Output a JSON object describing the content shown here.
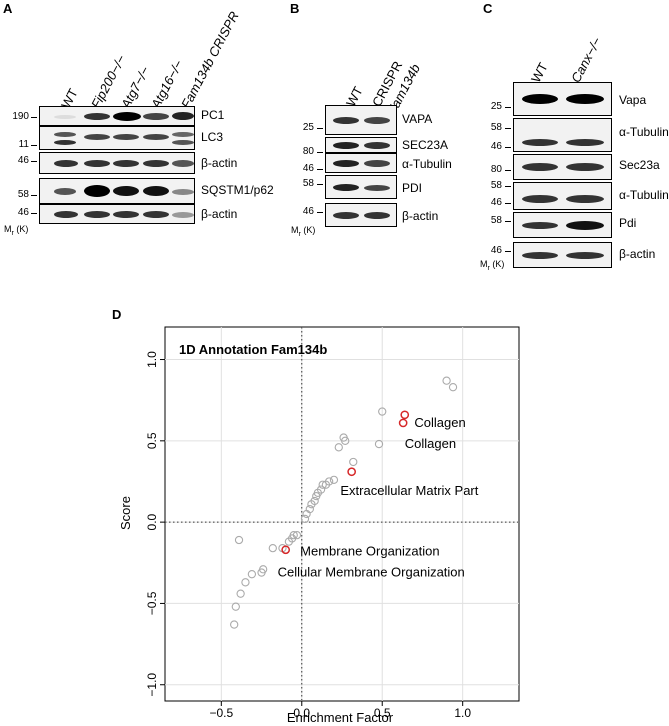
{
  "panels": {
    "A": {
      "letter": "A",
      "lanes": [
        "WT",
        "Fip200−/−",
        "Atg7−/−",
        "Atg16−/−",
        "Fam134b CRISPR"
      ],
      "blots": [
        "PC1",
        "LC3",
        "β-actin",
        "SQSTM1/p62",
        "β-actin"
      ],
      "markers": [
        "190",
        "11",
        "46",
        "58",
        "46"
      ],
      "mr_label": "M",
      "mr_sub": "r",
      "mr_unit": " (K)"
    },
    "B": {
      "letter": "B",
      "lanes": [
        "WT",
        "CRISPR",
        "Fam134b"
      ],
      "blots": [
        "VAPA",
        "SEC23A",
        "α-Tubulin",
        "PDI",
        "β-actin"
      ],
      "markers": [
        "25",
        "80",
        "46",
        "58",
        "46"
      ],
      "mr_label": "M",
      "mr_sub": "r",
      "mr_unit": " (K)"
    },
    "C": {
      "letter": "C",
      "lanes": [
        "WT",
        "Canx−/−"
      ],
      "blots": [
        "Vapa",
        "α-Tubulin",
        "Sec23a",
        "α-Tubulin",
        "Pdi",
        "β-actin"
      ],
      "markers": [
        "25",
        "58",
        "46",
        "80",
        "58",
        "46",
        "58",
        "46"
      ],
      "mr_label": "M",
      "mr_sub": "r",
      "mr_unit": " (K)"
    },
    "D": {
      "letter": "D"
    }
  },
  "chart_data": {
    "type": "scatter",
    "title": "1D Annotation Fam134b",
    "xlabel": "Enrichment Factor",
    "ylabel": "Score",
    "xlim": [
      -0.85,
      1.35
    ],
    "ylim": [
      -1.1,
      1.2
    ],
    "xticks": [
      "−0.5",
      "0.0",
      "0.5",
      "1.0"
    ],
    "yticks": [
      "−1.0",
      "−0.5",
      "0.0",
      "0.5",
      "1.0"
    ],
    "grid": true,
    "reference_lines": {
      "x": 0,
      "y": 0
    },
    "series": [
      {
        "color": "#aaaaaa",
        "points": [
          [
            -0.42,
            -0.63
          ],
          [
            -0.41,
            -0.52
          ],
          [
            -0.38,
            -0.44
          ],
          [
            -0.35,
            -0.37
          ],
          [
            -0.31,
            -0.32
          ],
          [
            -0.25,
            -0.31
          ],
          [
            -0.24,
            -0.29
          ],
          [
            -0.39,
            -0.11
          ],
          [
            -0.18,
            -0.16
          ],
          [
            -0.12,
            -0.16
          ],
          [
            -0.08,
            -0.12
          ],
          [
            -0.06,
            -0.1
          ],
          [
            -0.05,
            -0.08
          ],
          [
            -0.03,
            -0.08
          ],
          [
            0.02,
            0.02
          ],
          [
            0.03,
            0.05
          ],
          [
            0.05,
            0.08
          ],
          [
            0.06,
            0.11
          ],
          [
            0.08,
            0.13
          ],
          [
            0.09,
            0.16
          ],
          [
            0.1,
            0.18
          ],
          [
            0.12,
            0.2
          ],
          [
            0.13,
            0.23
          ],
          [
            0.15,
            0.23
          ],
          [
            0.17,
            0.25
          ],
          [
            0.2,
            0.26
          ],
          [
            0.23,
            0.46
          ],
          [
            0.26,
            0.52
          ],
          [
            0.27,
            0.5
          ],
          [
            0.32,
            0.37
          ],
          [
            0.48,
            0.48
          ],
          [
            0.5,
            0.68
          ],
          [
            0.9,
            0.87
          ],
          [
            0.94,
            0.83
          ]
        ]
      },
      {
        "color": "#d62728",
        "points": [
          [
            0.64,
            0.66
          ],
          [
            0.63,
            0.61
          ],
          [
            0.31,
            0.31
          ],
          [
            -0.1,
            -0.17
          ]
        ]
      }
    ],
    "annotations": [
      {
        "text": "Collagen",
        "x": 0.7,
        "y": 0.61
      },
      {
        "text": "Collagen",
        "x": 0.64,
        "y": 0.48
      },
      {
        "text": "Extracellular Matrix Part",
        "x": 0.24,
        "y": 0.19
      },
      {
        "text": "Membrane Organization",
        "x": -0.01,
        "y": -0.18
      },
      {
        "text": "Cellular Membrane Organization",
        "x": -0.15,
        "y": -0.31
      }
    ]
  }
}
